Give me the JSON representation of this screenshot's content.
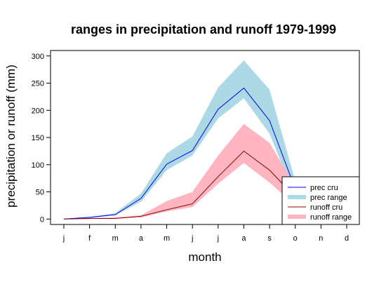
{
  "chart_data": {
    "type": "line",
    "title": "ranges in precipitation and runoff 1979-1999",
    "xlabel": "month",
    "ylabel": "precipitation or runoff (mm)",
    "categories": [
      "j",
      "f",
      "m",
      "a",
      "m",
      "j",
      "j",
      "a",
      "s",
      "o",
      "n",
      "d"
    ],
    "ylim": [
      -10,
      310
    ],
    "yticks": [
      0,
      50,
      100,
      150,
      200,
      250,
      300
    ],
    "grid": false,
    "legend_position": "bottom-right",
    "series": [
      {
        "name": "prec cru",
        "kind": "line",
        "color": "#0000ff",
        "values": [
          0,
          3,
          8,
          38,
          101,
          126,
          202,
          241,
          181,
          55,
          null,
          null
        ]
      },
      {
        "name": "prec range",
        "kind": "band",
        "color": "#add8e6",
        "lower": [
          0,
          2,
          7,
          32,
          90,
          117,
          185,
          222,
          157,
          40,
          null,
          null
        ],
        "upper": [
          0,
          4,
          11,
          47,
          121,
          152,
          242,
          292,
          238,
          70,
          null,
          null
        ]
      },
      {
        "name": "runoff cru",
        "kind": "line",
        "color": "#8b0000",
        "values": [
          0,
          1,
          1,
          5,
          17,
          28,
          78,
          125,
          90,
          40,
          null,
          null
        ]
      },
      {
        "name": "runoff range",
        "kind": "band",
        "color": "#ffb6c1",
        "lower": [
          0,
          0,
          1,
          3,
          14,
          22,
          65,
          103,
          67,
          25,
          null,
          null
        ],
        "upper": [
          0,
          2,
          3,
          7,
          33,
          50,
          117,
          175,
          140,
          60,
          null,
          null
        ]
      }
    ]
  }
}
